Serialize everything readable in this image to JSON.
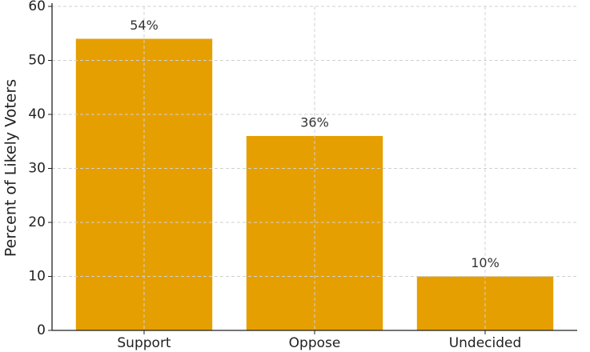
{
  "chart_data": {
    "type": "bar",
    "y_label": "Percent of Likely Voters",
    "categories": [
      "Support",
      "Oppose",
      "Undecided"
    ],
    "values": [
      54,
      36,
      10
    ],
    "value_labels": [
      "54%",
      "36%",
      "10%"
    ],
    "color": "#e69f00",
    "ylim": [
      0,
      60
    ],
    "yticks": [
      0,
      10,
      20,
      30,
      40,
      50,
      60
    ],
    "grid": true
  }
}
